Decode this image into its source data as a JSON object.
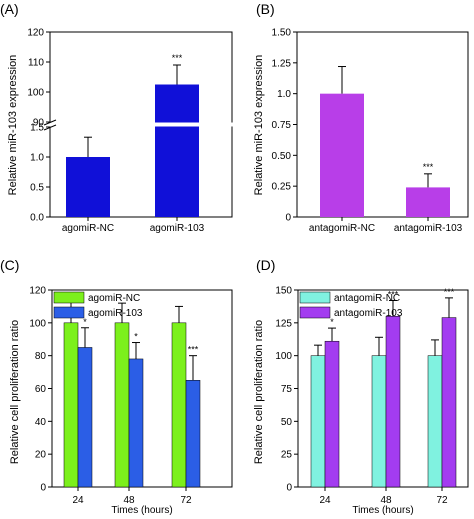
{
  "colors": {
    "blue": "#1010d8",
    "purple": "#b83ee8",
    "green": "#7cf01c",
    "medblue": "#2b5ee6",
    "aqua": "#80f2e0",
    "violet": "#a33cf0"
  },
  "chart_data": [
    {
      "panel_label": "(A)",
      "type": "bar",
      "ylabel": "Relative miR-103 expression",
      "categories": [
        "agomiR-NC",
        "agomiR-103"
      ],
      "values": [
        1.0,
        102.5
      ],
      "errors": [
        0.33,
        6.5
      ],
      "significance": [
        "",
        "***"
      ],
      "axis_break": true,
      "ylim_lower": [
        0,
        1.5
      ],
      "ylim_upper": [
        90,
        120
      ],
      "yticks_lower": [
        "0.0",
        "0.5",
        "1.0",
        "1.5"
      ],
      "yticks_upper": [
        "90",
        "100",
        "110",
        "120"
      ]
    },
    {
      "panel_label": "(B)",
      "type": "bar",
      "ylabel": "Relative miR-103 expression",
      "categories": [
        "antagomiR-NC",
        "antagomiR-103"
      ],
      "values": [
        1.0,
        0.24
      ],
      "errors": [
        0.22,
        0.11
      ],
      "significance": [
        "",
        "***"
      ],
      "ylim": [
        0,
        1.5
      ],
      "yticks": [
        "0",
        "0.25",
        "0.50",
        "0.75",
        "1.0",
        "1.25",
        "1.50"
      ]
    },
    {
      "panel_label": "(C)",
      "type": "bar",
      "xlabel": "Times (hours)",
      "ylabel": "Relative cell proliferation ratio",
      "categories": [
        "24",
        "48",
        "72"
      ],
      "ylim": [
        0,
        120
      ],
      "yticks": [
        "0",
        "20",
        "40",
        "60",
        "80",
        "100",
        "120"
      ],
      "legend_position": "top-left",
      "series": [
        {
          "name": "agomiR-NC",
          "values": [
            100,
            100,
            100
          ],
          "errors": [
            16,
            12,
            10
          ],
          "significance": [
            "",
            "",
            ""
          ]
        },
        {
          "name": "agomiR-103",
          "values": [
            85,
            78,
            65
          ],
          "errors": [
            12,
            10,
            15
          ],
          "significance": [
            "*",
            "*",
            "***"
          ]
        }
      ]
    },
    {
      "panel_label": "(D)",
      "type": "bar",
      "xlabel": "Times (hours)",
      "ylabel": "Relative cell proliferation ratio",
      "categories": [
        "24",
        "48",
        "72"
      ],
      "ylim": [
        0,
        150
      ],
      "yticks": [
        "0",
        "25",
        "50",
        "75",
        "100",
        "125",
        "150"
      ],
      "legend_position": "top-left",
      "series": [
        {
          "name": "antagomiR-NC",
          "values": [
            100,
            100,
            100
          ],
          "errors": [
            8,
            14,
            12
          ],
          "significance": [
            "",
            "",
            ""
          ]
        },
        {
          "name": "antagomiR-103",
          "values": [
            111,
            130,
            129
          ],
          "errors": [
            10,
            12,
            15
          ],
          "significance": [
            "*",
            "***",
            "***"
          ]
        }
      ]
    }
  ]
}
